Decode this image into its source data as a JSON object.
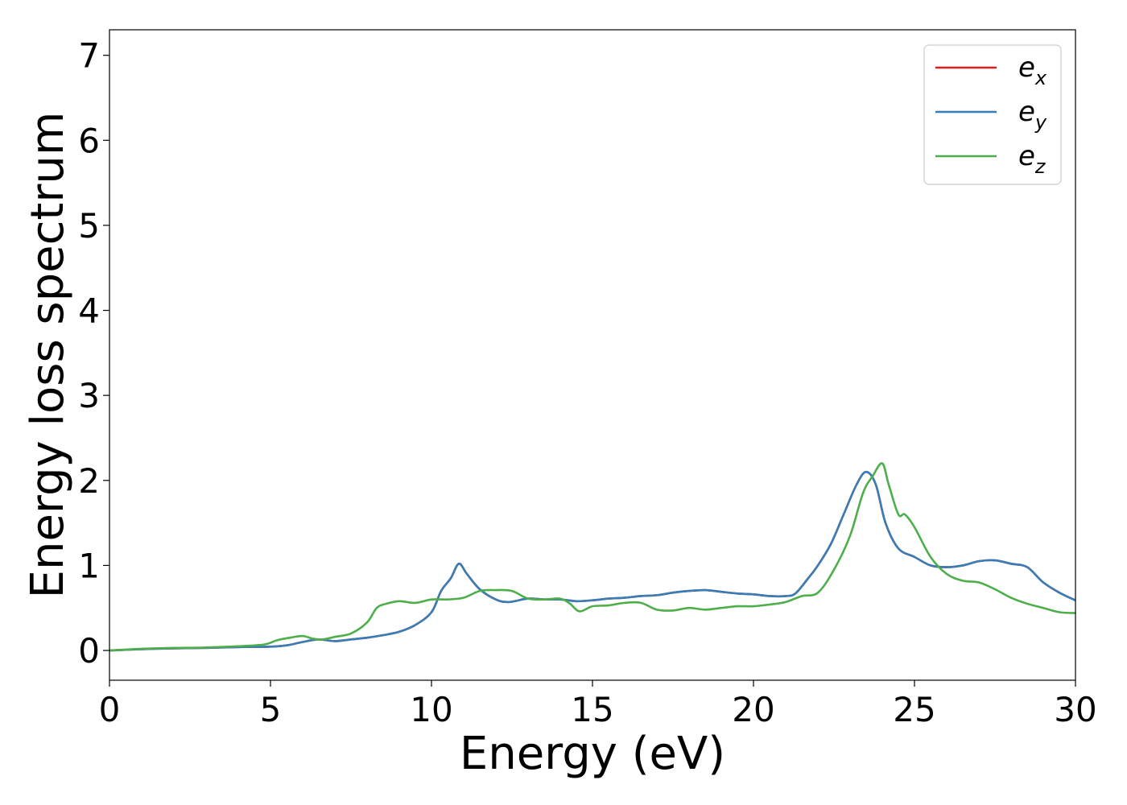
{
  "chart_data": {
    "type": "line",
    "xlabel": "Energy (eV)",
    "ylabel": "Energy loss spectrum",
    "xlim": [
      0,
      30
    ],
    "ylim": [
      -0.35,
      7.3
    ],
    "xticks": [
      0,
      5,
      10,
      15,
      20,
      25,
      30
    ],
    "yticks": [
      0,
      1,
      2,
      3,
      4,
      5,
      6,
      7
    ],
    "grid": false,
    "legend_position": "top-right",
    "series": [
      {
        "name": "e_x",
        "label_main": "e",
        "label_sub": "x",
        "color": "#e41a1c",
        "x": [
          0,
          1,
          2,
          3,
          4,
          5,
          5.5,
          6,
          6.5,
          7,
          7.5,
          8,
          8.5,
          9,
          9.5,
          10,
          10.3,
          10.6,
          10.85,
          11.1,
          11.5,
          12,
          12.4,
          13,
          13.5,
          14,
          14.5,
          15,
          15.5,
          16,
          16.5,
          17,
          17.5,
          18,
          18.5,
          19,
          19.5,
          20,
          20.5,
          21,
          21.3,
          21.7,
          22,
          22.4,
          22.8,
          23.2,
          23.5,
          23.8,
          24.1,
          24.5,
          25,
          25.5,
          26,
          26.5,
          27,
          27.5,
          28,
          28.5,
          29,
          29.5,
          30
        ],
        "y": [
          0,
          0.015,
          0.025,
          0.03,
          0.04,
          0.045,
          0.06,
          0.1,
          0.13,
          0.11,
          0.13,
          0.15,
          0.18,
          0.22,
          0.3,
          0.45,
          0.7,
          0.85,
          1.02,
          0.9,
          0.72,
          0.6,
          0.57,
          0.61,
          0.6,
          0.6,
          0.58,
          0.59,
          0.61,
          0.62,
          0.64,
          0.65,
          0.68,
          0.7,
          0.71,
          0.69,
          0.67,
          0.66,
          0.64,
          0.64,
          0.67,
          0.85,
          1.0,
          1.25,
          1.6,
          1.95,
          2.1,
          1.95,
          1.5,
          1.2,
          1.1,
          1.0,
          0.98,
          1.0,
          1.05,
          1.06,
          1.02,
          0.98,
          0.8,
          0.68,
          0.59
        ]
      },
      {
        "name": "e_y",
        "label_main": "e",
        "label_sub": "y",
        "color": "#377eb8",
        "x": [
          0,
          1,
          2,
          3,
          4,
          5,
          5.5,
          6,
          6.5,
          7,
          7.5,
          8,
          8.5,
          9,
          9.5,
          10,
          10.3,
          10.6,
          10.85,
          11.1,
          11.5,
          12,
          12.4,
          13,
          13.5,
          14,
          14.5,
          15,
          15.5,
          16,
          16.5,
          17,
          17.5,
          18,
          18.5,
          19,
          19.5,
          20,
          20.5,
          21,
          21.3,
          21.7,
          22,
          22.4,
          22.8,
          23.2,
          23.5,
          23.8,
          24.1,
          24.5,
          25,
          25.5,
          26,
          26.5,
          27,
          27.5,
          28,
          28.5,
          29,
          29.5,
          30
        ],
        "y": [
          0,
          0.015,
          0.025,
          0.03,
          0.04,
          0.045,
          0.06,
          0.1,
          0.13,
          0.11,
          0.13,
          0.15,
          0.18,
          0.22,
          0.3,
          0.45,
          0.7,
          0.85,
          1.02,
          0.9,
          0.72,
          0.6,
          0.57,
          0.61,
          0.6,
          0.6,
          0.58,
          0.59,
          0.61,
          0.62,
          0.64,
          0.65,
          0.68,
          0.7,
          0.71,
          0.69,
          0.67,
          0.66,
          0.64,
          0.64,
          0.67,
          0.85,
          1.0,
          1.25,
          1.6,
          1.95,
          2.1,
          1.95,
          1.5,
          1.2,
          1.1,
          1.0,
          0.98,
          1.0,
          1.05,
          1.06,
          1.02,
          0.98,
          0.8,
          0.68,
          0.59
        ]
      },
      {
        "name": "e_z",
        "label_main": "e",
        "label_sub": "z",
        "color": "#4daf4a",
        "x": [
          0,
          1,
          2,
          3,
          4,
          4.8,
          5.2,
          5.6,
          6,
          6.3,
          6.6,
          7,
          7.5,
          8,
          8.3,
          8.6,
          9,
          9.5,
          10,
          10.5,
          11,
          11.5,
          12,
          12.5,
          13,
          13.5,
          14,
          14.3,
          14.6,
          15,
          15.5,
          16,
          16.5,
          17,
          17.5,
          18,
          18.5,
          19,
          19.5,
          20,
          20.5,
          21,
          21.5,
          22,
          22.5,
          23,
          23.4,
          23.7,
          24,
          24.2,
          24.5,
          24.7,
          25,
          25.5,
          26,
          26.5,
          27,
          27.5,
          28,
          28.5,
          29,
          29.5,
          30
        ],
        "y": [
          0,
          0.02,
          0.03,
          0.035,
          0.05,
          0.07,
          0.12,
          0.15,
          0.17,
          0.14,
          0.13,
          0.16,
          0.2,
          0.33,
          0.5,
          0.55,
          0.58,
          0.56,
          0.6,
          0.6,
          0.62,
          0.7,
          0.71,
          0.7,
          0.61,
          0.6,
          0.61,
          0.55,
          0.46,
          0.52,
          0.53,
          0.56,
          0.56,
          0.48,
          0.47,
          0.5,
          0.48,
          0.5,
          0.52,
          0.52,
          0.54,
          0.57,
          0.64,
          0.68,
          0.95,
          1.35,
          1.85,
          2.05,
          2.2,
          1.95,
          1.6,
          1.6,
          1.45,
          1.1,
          0.9,
          0.82,
          0.8,
          0.72,
          0.62,
          0.55,
          0.5,
          0.45,
          0.44
        ]
      }
    ]
  }
}
